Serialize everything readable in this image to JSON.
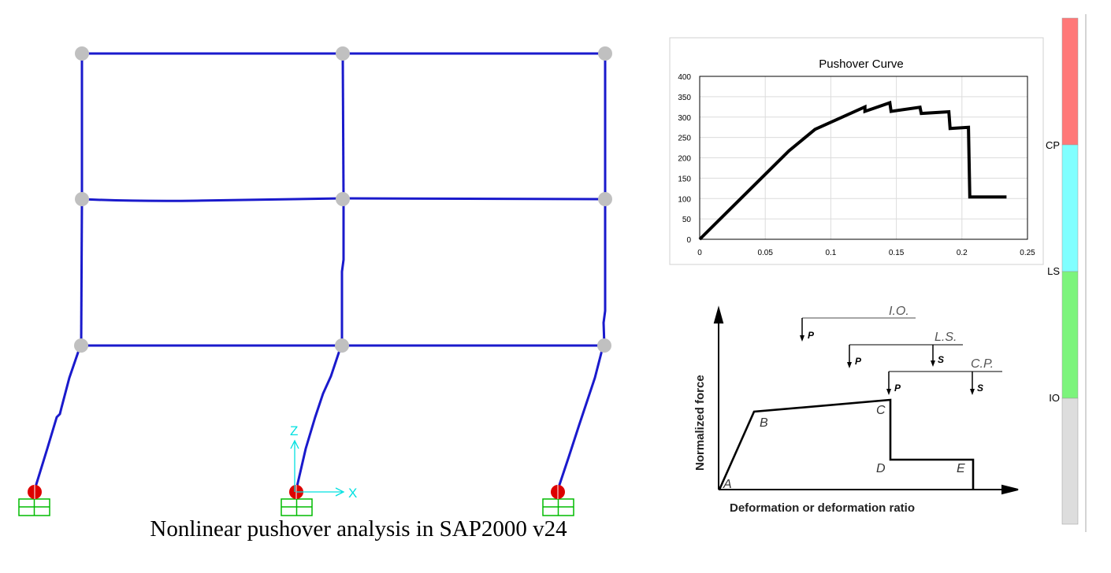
{
  "caption": "Nonlinear pushover analysis in SAP2000 v24",
  "colors": {
    "frame": "#1a1acc",
    "hinge_node": "#c0c0c0",
    "base_hinge": "#dd0000",
    "support": "#00bb00",
    "axis": "#00e0e0",
    "cp_band": "#ff7878",
    "ls_band": "#80ffff",
    "io_band": "#7cf47c",
    "below_io_band": "#dddddd"
  },
  "frame_axes": {
    "z_label": "Z",
    "x_label": "X"
  },
  "legend_scale": {
    "labels": [
      "CP",
      "LS",
      "IO"
    ]
  },
  "chart_data": {
    "type": "line",
    "title": "Pushover Curve",
    "xlabel": "",
    "ylabel": "",
    "xlim": [
      0,
      0.25
    ],
    "ylim": [
      0,
      400
    ],
    "x_ticks": [
      "0",
      "0.05",
      "0.1",
      "0.15",
      "0.2",
      "0.25"
    ],
    "y_ticks": [
      "0",
      "50",
      "100",
      "150",
      "200",
      "250",
      "300",
      "350",
      "400"
    ],
    "grid": true,
    "series": [
      {
        "x": [
          0,
          0.068,
          0.088,
          0.126,
          0.126,
          0.145,
          0.146,
          0.168,
          0.169,
          0.19,
          0.191,
          0.205,
          0.206,
          0.234
        ],
        "y": [
          0,
          217,
          270,
          325,
          314,
          335,
          314,
          324,
          309,
          313,
          272,
          275,
          104,
          104
        ]
      }
    ]
  },
  "backbone": {
    "y_axis_label": "Normalized force",
    "x_axis_label": "Deformation or deformation ratio",
    "points": [
      "A",
      "B",
      "C",
      "D",
      "E"
    ],
    "levels": [
      {
        "label": "I.O.",
        "loads": [
          "P"
        ]
      },
      {
        "label": "L.S.",
        "loads": [
          "P",
          "S"
        ]
      },
      {
        "label": "C.P.",
        "loads": [
          "P",
          "S"
        ]
      }
    ]
  }
}
